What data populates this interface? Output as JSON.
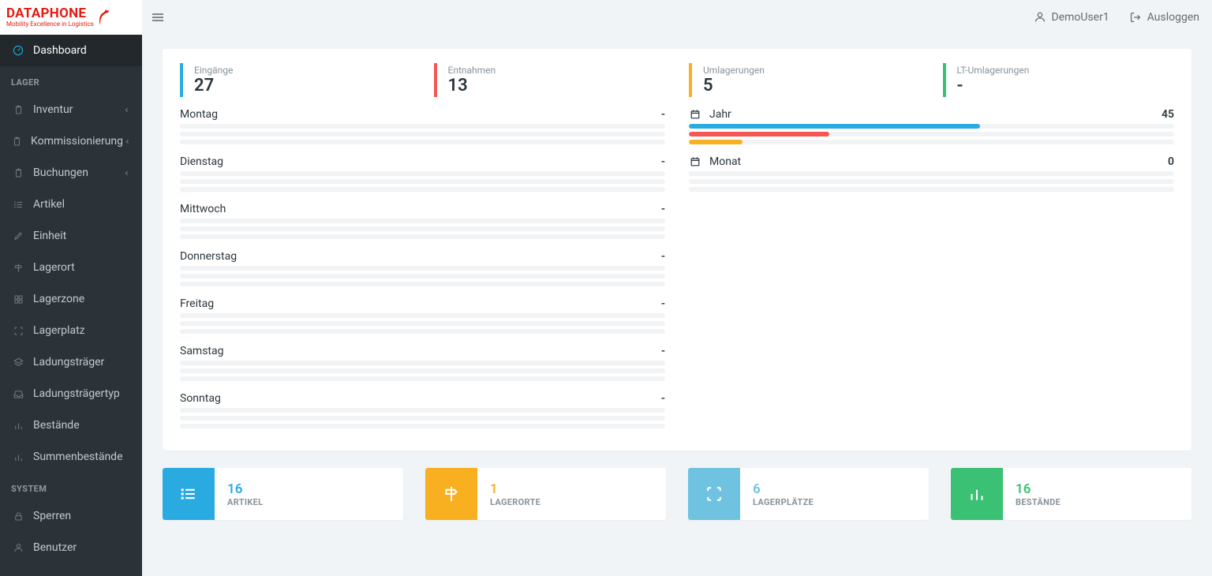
{
  "brand": {
    "name": "DATAPHONE",
    "tagline": "Mobility Excellence in Logistics",
    "color": "#e41b13"
  },
  "topbar": {
    "user_label": "DemoUser1",
    "logout_label": "Ausloggen"
  },
  "sidebar": {
    "dashboard": "Dashboard",
    "sections": {
      "lager": {
        "title": "LAGER",
        "items": [
          {
            "label": "Inventur",
            "icon": "clipboard",
            "expandable": true
          },
          {
            "label": "Kommissionierung",
            "icon": "clipboard",
            "expandable": true
          },
          {
            "label": "Buchungen",
            "icon": "clipboard",
            "expandable": true
          },
          {
            "label": "Artikel",
            "icon": "list",
            "expandable": false
          },
          {
            "label": "Einheit",
            "icon": "pencil",
            "expandable": false
          },
          {
            "label": "Lagerort",
            "icon": "signpost",
            "expandable": false
          },
          {
            "label": "Lagerzone",
            "icon": "grid",
            "expandable": false
          },
          {
            "label": "Lagerplatz",
            "icon": "focus",
            "expandable": false
          },
          {
            "label": "Ladungsträger",
            "icon": "layers",
            "expandable": false
          },
          {
            "label": "Ladungsträgertyp",
            "icon": "inbox",
            "expandable": false
          },
          {
            "label": "Bestände",
            "icon": "bar-chart",
            "expandable": false
          },
          {
            "label": "Summenbestände",
            "icon": "bar-chart",
            "expandable": false
          }
        ]
      },
      "system": {
        "title": "SYSTEM",
        "items": [
          {
            "label": "Sperren",
            "icon": "lock",
            "expandable": false
          },
          {
            "label": "Benutzer",
            "icon": "user",
            "expandable": false
          }
        ]
      }
    }
  },
  "colors": {
    "blue": "#29abe2",
    "red": "#f55753",
    "yellow": "#f8b021",
    "green": "#3ac174",
    "tile_blue": "#29abe2",
    "tile_yellow": "#f8b021",
    "tile_lightblue": "#6fc3e0",
    "tile_green": "#3ac174",
    "track": "#f1f3f5"
  },
  "stats": {
    "left": [
      {
        "label": "Eingänge",
        "value": "27",
        "color": "#29abe2"
      },
      {
        "label": "Entnahmen",
        "value": "13",
        "color": "#f55753"
      }
    ],
    "right": [
      {
        "label": "Umlagerungen",
        "value": "5",
        "color": "#f8b021"
      },
      {
        "label": "LT-Umlagerungen",
        "value": "-",
        "color": "#3ac174"
      }
    ]
  },
  "week": [
    {
      "name": "Montag",
      "value": "-"
    },
    {
      "name": "Dienstag",
      "value": "-"
    },
    {
      "name": "Mittwoch",
      "value": "-"
    },
    {
      "name": "Donnerstag",
      "value": "-"
    },
    {
      "name": "Freitag",
      "value": "-"
    },
    {
      "name": "Samstag",
      "value": "-"
    },
    {
      "name": "Sonntag",
      "value": "-"
    }
  ],
  "periods": [
    {
      "name": "Jahr",
      "value": "45",
      "bars": [
        {
          "color": "#29abe2",
          "pct": 60
        },
        {
          "color": "#f55753",
          "pct": 29
        },
        {
          "color": "#f8b021",
          "pct": 11
        }
      ]
    },
    {
      "name": "Monat",
      "value": "0",
      "bars": [
        {
          "color": null,
          "pct": 0
        },
        {
          "color": null,
          "pct": 0
        },
        {
          "color": null,
          "pct": 0
        }
      ]
    }
  ],
  "tiles": [
    {
      "value": "16",
      "label": "ARTIKEL",
      "icon": "list",
      "bg": "#29abe2",
      "value_color": "#29abe2"
    },
    {
      "value": "1",
      "label": "LAGERORTE",
      "icon": "signpost",
      "bg": "#f8b021",
      "value_color": "#f8b021"
    },
    {
      "value": "6",
      "label": "LAGERPLÄTZE",
      "icon": "focus",
      "bg": "#6fc3e0",
      "value_color": "#6fc3e0"
    },
    {
      "value": "16",
      "label": "BESTÄNDE",
      "icon": "bar-chart",
      "bg": "#3ac174",
      "value_color": "#3ac174"
    }
  ]
}
